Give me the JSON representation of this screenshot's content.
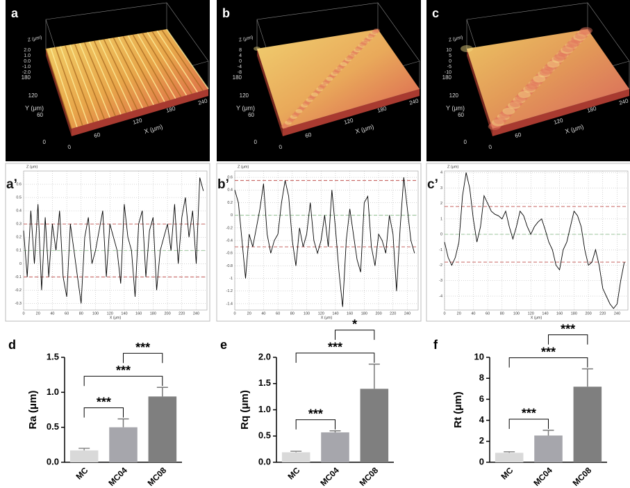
{
  "surfaces": [
    {
      "label": "a",
      "z_axis": "Z (μm)",
      "z_ticks": [
        "2.0",
        "1.0",
        "0.0",
        "-1.0",
        "-2.0"
      ],
      "y_axis": "Y (μm)",
      "y_ticks": [
        "180",
        "120",
        "60",
        "0"
      ],
      "x_axis": "X (μm)",
      "x_ticks": [
        "0",
        "60",
        "120",
        "180",
        "240"
      ]
    },
    {
      "label": "b",
      "z_axis": "Z (μm)",
      "z_ticks": [
        "8",
        "4",
        "0",
        "-4",
        "-8"
      ],
      "y_axis": "Y (μm)",
      "y_ticks": [
        "180",
        "120",
        "60",
        "0"
      ],
      "x_axis": "X (μm)",
      "x_ticks": [
        "0",
        "60",
        "120",
        "180",
        "240"
      ]
    },
    {
      "label": "c",
      "z_axis": "Z (μm)",
      "z_ticks": [
        "10",
        "5",
        "0",
        "-5",
        "-10"
      ],
      "y_axis": "Y (μm)",
      "y_ticks": [
        "180",
        "120",
        "60",
        "0"
      ],
      "x_axis": "X (μm)",
      "x_ticks": [
        "0",
        "60",
        "120",
        "180",
        "240"
      ]
    }
  ],
  "chart_data": [
    {
      "type": "line",
      "panel": "a’",
      "x_label": "X (μm)",
      "y_label": "Z (μm)",
      "color": "#000000",
      "grid": true,
      "x": [
        0,
        5,
        10,
        15,
        20,
        25,
        30,
        35,
        40,
        45,
        50,
        55,
        60,
        65,
        70,
        75,
        80,
        85,
        90,
        95,
        100,
        105,
        110,
        115,
        120,
        125,
        130,
        135,
        140,
        145,
        150,
        155,
        160,
        165,
        170,
        175,
        180,
        185,
        190,
        195,
        200,
        205,
        210,
        215,
        220,
        225,
        230,
        235,
        240,
        245,
        250
      ],
      "values": [
        0.25,
        -0.1,
        0.4,
        0.0,
        0.45,
        -0.2,
        0.35,
        -0.1,
        0.3,
        0.1,
        0.4,
        -0.1,
        -0.25,
        0.3,
        0.1,
        -0.1,
        -0.3,
        0.2,
        0.35,
        0.0,
        0.1,
        0.25,
        0.4,
        -0.1,
        0.3,
        0.2,
        0.1,
        -0.15,
        0.45,
        0.2,
        0.1,
        -0.25,
        0.3,
        0.4,
        -0.1,
        0.25,
        0.35,
        -0.2,
        0.1,
        0.2,
        0.3,
        0.1,
        0.45,
        0.0,
        0.35,
        0.5,
        0.2,
        0.4,
        0.0,
        0.65,
        0.55
      ],
      "xlim": [
        0,
        255
      ],
      "xticks": [
        0,
        20,
        40,
        60,
        80,
        100,
        120,
        140,
        160,
        180,
        200,
        220,
        240
      ],
      "ylim": [
        -0.35,
        0.7
      ],
      "yticks": [
        -0.3,
        -0.2,
        -0.1,
        0,
        0.1,
        0.2,
        0.3,
        0.4,
        0.5,
        0.6
      ],
      "reference_lines": [
        {
          "value": 0.3,
          "color": "#c0504d"
        },
        {
          "value": 0.1,
          "color": "#8fbf8f"
        },
        {
          "value": -0.1,
          "color": "#c0504d"
        }
      ]
    },
    {
      "type": "line",
      "panel": "b’",
      "x_label": "X (μm)",
      "y_label": "Z (μm)",
      "color": "#000000",
      "grid": true,
      "x": [
        0,
        5,
        10,
        15,
        20,
        25,
        30,
        35,
        40,
        45,
        50,
        55,
        60,
        65,
        70,
        75,
        80,
        85,
        90,
        95,
        100,
        105,
        110,
        115,
        120,
        125,
        130,
        135,
        140,
        145,
        150,
        155,
        160,
        165,
        170,
        175,
        180,
        185,
        190,
        195,
        200,
        205,
        210,
        215,
        220,
        225,
        230,
        235,
        240,
        245,
        250
      ],
      "values": [
        0.4,
        0.2,
        -0.4,
        -1.0,
        -0.3,
        -0.5,
        -0.2,
        0.1,
        0.5,
        -0.3,
        -0.6,
        -0.4,
        -0.3,
        0.2,
        0.55,
        0.3,
        -0.4,
        -0.8,
        -0.2,
        -0.5,
        -0.3,
        0.2,
        -0.4,
        -0.6,
        -0.4,
        0.0,
        -0.5,
        0.4,
        -0.2,
        -0.9,
        -1.45,
        -0.4,
        0.1,
        -0.3,
        -0.7,
        -0.9,
        0.2,
        0.3,
        -0.5,
        -0.8,
        -0.3,
        -0.4,
        -0.6,
        0.0,
        -0.3,
        -1.2,
        -0.2,
        0.6,
        0.1,
        -0.4,
        -0.6
      ],
      "xlim": [
        0,
        255
      ],
      "xticks": [
        0,
        20,
        40,
        60,
        80,
        100,
        120,
        140,
        160,
        180,
        200,
        220,
        240
      ],
      "ylim": [
        -1.5,
        0.7
      ],
      "yticks": [
        -1.4,
        -1.2,
        -1,
        -0.8,
        -0.6,
        -0.4,
        -0.2,
        0,
        0.2,
        0.4,
        0.6
      ],
      "reference_lines": [
        {
          "value": 0.55,
          "color": "#c0504d"
        },
        {
          "value": 0,
          "color": "#8fbf8f"
        },
        {
          "value": -0.5,
          "color": "#c0504d"
        }
      ]
    },
    {
      "type": "line",
      "panel": "c’",
      "x_label": "X (μm)",
      "y_label": "Z (μm)",
      "color": "#000000",
      "grid": true,
      "x": [
        0,
        5,
        10,
        15,
        20,
        25,
        30,
        35,
        40,
        45,
        50,
        55,
        60,
        65,
        70,
        75,
        80,
        85,
        90,
        95,
        100,
        105,
        110,
        115,
        120,
        125,
        130,
        135,
        140,
        145,
        150,
        155,
        160,
        165,
        170,
        175,
        180,
        185,
        190,
        195,
        200,
        205,
        210,
        215,
        220,
        225,
        230,
        235,
        240,
        245,
        250
      ],
      "values": [
        -0.5,
        -1.5,
        -2.0,
        -1.5,
        -0.5,
        2.5,
        4.0,
        3.0,
        1.0,
        -0.5,
        0.5,
        2.5,
        2.0,
        1.5,
        1.3,
        1.2,
        1.0,
        1.5,
        0.5,
        -0.3,
        0.5,
        1.5,
        1.2,
        0.5,
        0.0,
        0.5,
        0.8,
        1.0,
        0.3,
        -0.5,
        -1.0,
        -2.0,
        -2.3,
        -1.0,
        -0.5,
        0.5,
        1.5,
        1.2,
        0.5,
        -1.0,
        -2.0,
        -1.8,
        -1.0,
        -2.0,
        -3.5,
        -4.0,
        -4.5,
        -4.8,
        -4.5,
        -3.0,
        -1.8
      ],
      "xlim": [
        0,
        255
      ],
      "xticks": [
        0,
        20,
        40,
        60,
        80,
        100,
        120,
        140,
        160,
        180,
        200,
        220,
        240
      ],
      "ylim": [
        -4.9,
        4.1
      ],
      "yticks": [
        -4,
        -3,
        -2,
        -1,
        0,
        1,
        2,
        3,
        4
      ],
      "reference_lines": [
        {
          "value": 1.8,
          "color": "#c0504d"
        },
        {
          "value": 0,
          "color": "#8fbf8f"
        },
        {
          "value": -1.8,
          "color": "#c0504d"
        }
      ]
    },
    {
      "type": "bar",
      "panel": "d",
      "y_label": "Ra (μm)",
      "categories": [
        "MC",
        "MC04",
        "MC08"
      ],
      "values": [
        0.17,
        0.5,
        0.94
      ],
      "errors": [
        0.03,
        0.12,
        0.13
      ],
      "colors": [
        "#d9d9d9",
        "#a6a6ac",
        "#7f7f7f"
      ],
      "ylim": [
        0,
        1.5
      ],
      "yticks": [
        {
          "value": 0,
          "label": "0.0"
        },
        0.5,
        {
          "value": 1,
          "label": "1.0"
        },
        1.5
      ],
      "significance": [
        {
          "between": [
            "MC",
            "MC04"
          ],
          "label": "***"
        },
        {
          "between": [
            "MC",
            "MC08"
          ],
          "label": "***"
        },
        {
          "between": [
            "MC04",
            "MC08"
          ],
          "label": "***"
        }
      ]
    },
    {
      "type": "bar",
      "panel": "e",
      "y_label": "Rq (μm)",
      "categories": [
        "MC",
        "MC04",
        "MC08"
      ],
      "values": [
        0.19,
        0.57,
        1.4
      ],
      "errors": [
        0.02,
        0.03,
        0.47
      ],
      "colors": [
        "#d9d9d9",
        "#a6a6ac",
        "#7f7f7f"
      ],
      "ylim": [
        0,
        2
      ],
      "yticks": [
        {
          "value": 0,
          "label": "0.0"
        },
        0.5,
        {
          "value": 1,
          "label": "1.0"
        },
        1.5,
        {
          "value": 2,
          "label": "2.0"
        }
      ],
      "significance": [
        {
          "between": [
            "MC",
            "MC04"
          ],
          "label": "***"
        },
        {
          "between": [
            "MC",
            "MC08"
          ],
          "label": "***"
        },
        {
          "between": [
            "MC04",
            "MC08"
          ],
          "label": "*"
        }
      ]
    },
    {
      "type": "bar",
      "panel": "f",
      "y_label": "Rt (μm)",
      "categories": [
        "MC",
        "MC04",
        "MC08"
      ],
      "values": [
        0.9,
        2.55,
        7.2
      ],
      "errors": [
        0.1,
        0.5,
        1.7
      ],
      "colors": [
        "#d9d9d9",
        "#a6a6ac",
        "#7f7f7f"
      ],
      "ylim": [
        0,
        10
      ],
      "yticks": [
        0,
        2,
        4,
        6,
        8,
        10
      ],
      "significance": [
        {
          "between": [
            "MC",
            "MC04"
          ],
          "label": "***"
        },
        {
          "between": [
            "MC",
            "MC08"
          ],
          "label": "***"
        },
        {
          "between": [
            "MC04",
            "MC08"
          ],
          "label": "***"
        }
      ]
    }
  ]
}
